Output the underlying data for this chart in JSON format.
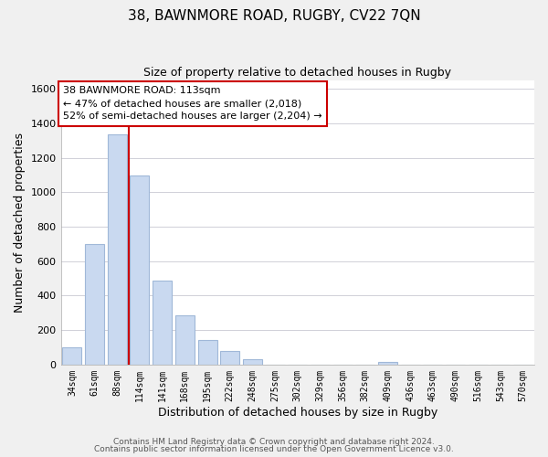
{
  "title": "38, BAWNMORE ROAD, RUGBY, CV22 7QN",
  "subtitle": "Size of property relative to detached houses in Rugby",
  "xlabel": "Distribution of detached houses by size in Rugby",
  "ylabel": "Number of detached properties",
  "bar_labels": [
    "34sqm",
    "61sqm",
    "88sqm",
    "114sqm",
    "141sqm",
    "168sqm",
    "195sqm",
    "222sqm",
    "248sqm",
    "275sqm",
    "302sqm",
    "329sqm",
    "356sqm",
    "382sqm",
    "409sqm",
    "436sqm",
    "463sqm",
    "490sqm",
    "516sqm",
    "543sqm",
    "570sqm"
  ],
  "bar_values": [
    100,
    700,
    1335,
    1100,
    490,
    285,
    140,
    80,
    30,
    0,
    0,
    0,
    0,
    0,
    15,
    0,
    0,
    0,
    0,
    0,
    0
  ],
  "bar_color": "#c9d9f0",
  "bar_edge_color": "#a0b8d8",
  "vline_index": 2.5,
  "vline_color": "#cc0000",
  "annotation_text": "38 BAWNMORE ROAD: 113sqm\n← 47% of detached houses are smaller (2,018)\n52% of semi-detached houses are larger (2,204) →",
  "annotation_box_color": "white",
  "annotation_box_edge": "#cc0000",
  "ylim": [
    0,
    1650
  ],
  "yticks": [
    0,
    200,
    400,
    600,
    800,
    1000,
    1200,
    1400,
    1600
  ],
  "footer_line1": "Contains HM Land Registry data © Crown copyright and database right 2024.",
  "footer_line2": "Contains public sector information licensed under the Open Government Licence v3.0.",
  "bg_color": "#f0f0f0",
  "plot_bg_color": "#ffffff",
  "grid_color": "#d0d0d8"
}
